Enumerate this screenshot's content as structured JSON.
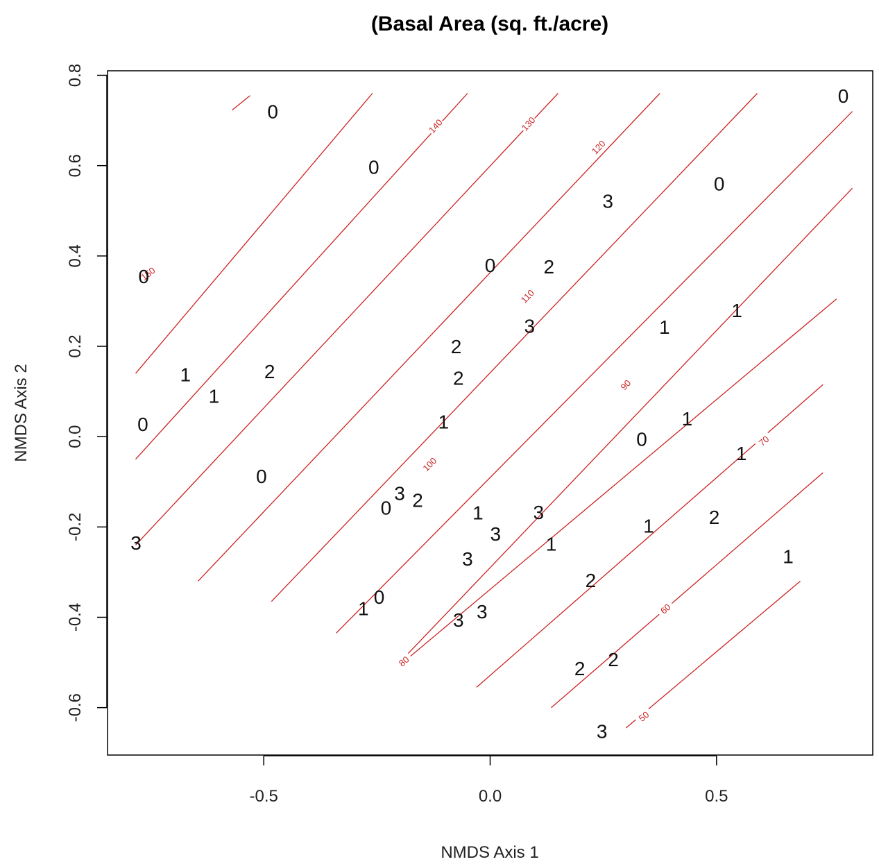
{
  "chart_data": {
    "type": "scatter",
    "title": "(Basal Area (sq. ft./acre)",
    "xlabel": "NMDS Axis 1",
    "ylabel": "NMDS Axis 2",
    "xlim": [
      -0.845,
      0.845
    ],
    "ylim": [
      -0.705,
      0.81
    ],
    "x_ticks": [
      -0.5,
      0.0,
      0.5
    ],
    "x_tick_labels": [
      "-0.5",
      "0.0",
      "0.5"
    ],
    "y_ticks": [
      -0.6,
      -0.4,
      -0.2,
      0.0,
      0.2,
      0.4,
      0.6,
      0.8
    ],
    "y_tick_labels": [
      "-0.6",
      "-0.4",
      "-0.2",
      "0.0",
      "0.2",
      "0.4",
      "0.6",
      "0.8"
    ],
    "grid": false,
    "contour_color": "#cc2222",
    "points": [
      {
        "x": -0.48,
        "y": 0.72,
        "label": "0"
      },
      {
        "x": -0.257,
        "y": 0.597,
        "label": "0"
      },
      {
        "x": -0.765,
        "y": 0.355,
        "label": "0"
      },
      {
        "x": 0.78,
        "y": 0.755,
        "label": "0"
      },
      {
        "x": 0.506,
        "y": 0.56,
        "label": "0"
      },
      {
        "x": 0.0,
        "y": 0.38,
        "label": "0"
      },
      {
        "x": -0.767,
        "y": 0.028,
        "label": "0"
      },
      {
        "x": -0.505,
        "y": -0.087,
        "label": "0"
      },
      {
        "x": 0.335,
        "y": -0.005,
        "label": "0"
      },
      {
        "x": -0.23,
        "y": -0.157,
        "label": "0"
      },
      {
        "x": -0.245,
        "y": -0.355,
        "label": "0"
      },
      {
        "x": 0.26,
        "y": 0.522,
        "label": "3"
      },
      {
        "x": 0.087,
        "y": 0.245,
        "label": "3"
      },
      {
        "x": -0.782,
        "y": -0.235,
        "label": "3"
      },
      {
        "x": -0.2,
        "y": -0.125,
        "label": "3"
      },
      {
        "x": 0.107,
        "y": -0.167,
        "label": "3"
      },
      {
        "x": 0.012,
        "y": -0.215,
        "label": "3"
      },
      {
        "x": -0.05,
        "y": -0.27,
        "label": "3"
      },
      {
        "x": -0.07,
        "y": -0.405,
        "label": "3"
      },
      {
        "x": -0.018,
        "y": -0.387,
        "label": "3"
      },
      {
        "x": 0.247,
        "y": -0.652,
        "label": "3"
      },
      {
        "x": 0.13,
        "y": 0.377,
        "label": "2"
      },
      {
        "x": -0.075,
        "y": 0.2,
        "label": "2"
      },
      {
        "x": -0.07,
        "y": 0.13,
        "label": "2"
      },
      {
        "x": -0.487,
        "y": 0.145,
        "label": "2"
      },
      {
        "x": -0.16,
        "y": -0.14,
        "label": "2"
      },
      {
        "x": 0.222,
        "y": -0.318,
        "label": "2"
      },
      {
        "x": 0.495,
        "y": -0.178,
        "label": "2"
      },
      {
        "x": 0.198,
        "y": -0.513,
        "label": "2"
      },
      {
        "x": 0.272,
        "y": -0.493,
        "label": "2"
      },
      {
        "x": 0.385,
        "y": 0.243,
        "label": "1"
      },
      {
        "x": 0.545,
        "y": 0.28,
        "label": "1"
      },
      {
        "x": -0.673,
        "y": 0.138,
        "label": "1"
      },
      {
        "x": -0.61,
        "y": 0.09,
        "label": "1"
      },
      {
        "x": -0.103,
        "y": 0.033,
        "label": "1"
      },
      {
        "x": 0.435,
        "y": 0.04,
        "label": "1"
      },
      {
        "x": 0.555,
        "y": -0.037,
        "label": "1"
      },
      {
        "x": -0.027,
        "y": -0.168,
        "label": "1"
      },
      {
        "x": 0.35,
        "y": -0.197,
        "label": "1"
      },
      {
        "x": 0.135,
        "y": -0.237,
        "label": "1"
      },
      {
        "x": 0.658,
        "y": -0.265,
        "label": "1"
      },
      {
        "x": -0.28,
        "y": -0.38,
        "label": "1"
      }
    ],
    "contours": [
      {
        "level": 150,
        "label": "150",
        "x": [
          -0.57,
          -0.53
        ],
        "y": [
          0.723,
          0.755
        ],
        "label_at": [
          -0.755,
          0.36
        ]
      },
      {
        "level": 150,
        "label": "",
        "x": [
          -0.783,
          -0.26
        ],
        "y": [
          0.14,
          0.76
        ],
        "label_at": null
      },
      {
        "level": 140,
        "label": "140",
        "x": [
          -0.783,
          -0.05
        ],
        "y": [
          -0.05,
          0.76
        ],
        "label_at": [
          -0.12,
          0.687
        ]
      },
      {
        "level": 130,
        "label": "130",
        "x": [
          -0.783,
          0.15
        ],
        "y": [
          -0.24,
          0.76
        ],
        "label_at": [
          0.085,
          0.692
        ]
      },
      {
        "level": 120,
        "label": "120",
        "x": [
          -0.645,
          0.375
        ],
        "y": [
          -0.32,
          0.76
        ],
        "label_at": [
          0.24,
          0.64
        ]
      },
      {
        "level": 110,
        "label": "110",
        "x": [
          -0.483,
          0.59
        ],
        "y": [
          -0.365,
          0.76
        ],
        "label_at": [
          0.083,
          0.31
        ]
      },
      {
        "level": 100,
        "label": "100",
        "x": [
          -0.34,
          0.8
        ],
        "y": [
          -0.435,
          0.72
        ],
        "label_at": [
          -0.133,
          -0.062
        ]
      },
      {
        "level": 90,
        "label": "90",
        "x": [
          -0.2,
          0.8
        ],
        "y": [
          -0.5,
          0.55
        ],
        "label_at": [
          0.3,
          0.114
        ]
      },
      {
        "level": 80,
        "label": "80",
        "x": [
          -0.19,
          0.765
        ],
        "y": [
          -0.498,
          0.305
        ],
        "label_at": [
          -0.19,
          -0.498
        ]
      },
      {
        "level": 70,
        "label": "70",
        "x": [
          -0.03,
          0.735
        ],
        "y": [
          -0.555,
          0.115
        ],
        "label_at": [
          0.605,
          -0.01
        ]
      },
      {
        "level": 60,
        "label": "60",
        "x": [
          0.135,
          0.735
        ],
        "y": [
          -0.6,
          -0.08
        ],
        "label_at": [
          0.388,
          -0.382
        ]
      },
      {
        "level": 50,
        "label": "50",
        "x": [
          0.3,
          0.685
        ],
        "y": [
          -0.645,
          -0.32
        ],
        "label_at": [
          0.34,
          -0.62
        ]
      }
    ]
  }
}
